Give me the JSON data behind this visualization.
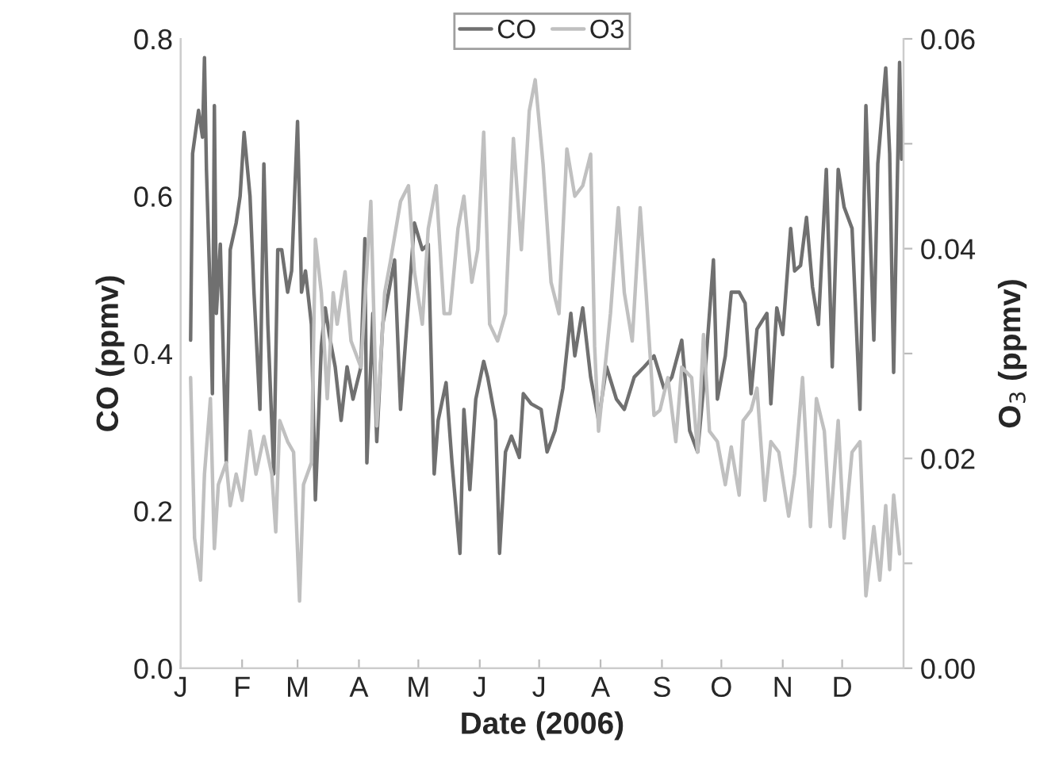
{
  "chart_data": {
    "type": "line",
    "xlabel": "Date (2006)",
    "ylabel": "CO (ppmv)",
    "y2label": "O$_{3}$ (ppmv)",
    "categories": [
      "J",
      null,
      null,
      null,
      null,
      null,
      null,
      null,
      null,
      null,
      null,
      null,
      null,
      null,
      null,
      null,
      null,
      null,
      null,
      null,
      null,
      null,
      null,
      null,
      null,
      null,
      null,
      null,
      null,
      null,
      null,
      "F",
      null,
      null,
      null,
      null,
      null,
      null,
      null,
      null,
      null,
      null,
      null,
      null,
      null,
      null,
      null,
      null,
      null,
      null,
      null,
      null,
      null,
      null,
      null,
      null,
      null,
      null,
      null,
      "M",
      null,
      null,
      null,
      null,
      null,
      null,
      null,
      null,
      null,
      null,
      null,
      null,
      null,
      null,
      null,
      null,
      null,
      null,
      null,
      null,
      null,
      null,
      null,
      null,
      null,
      null,
      null,
      null,
      null,
      null,
      "A",
      null,
      null,
      null,
      null,
      null,
      null,
      null,
      null,
      null,
      null,
      null,
      null,
      null,
      null,
      null,
      null,
      null,
      null,
      null,
      null,
      null,
      null,
      null,
      null,
      null,
      null,
      null,
      null,
      null,
      "M",
      null,
      null,
      null,
      null,
      null,
      null,
      null,
      null,
      null,
      null,
      null,
      null,
      null,
      null,
      null,
      null,
      null,
      null,
      null,
      null,
      null,
      null,
      null,
      null,
      null,
      null,
      null,
      null,
      null,
      null,
      "J",
      null,
      null,
      null,
      null,
      null,
      null,
      null,
      null,
      null,
      null,
      null,
      null,
      null,
      null,
      null,
      null,
      null,
      null,
      null,
      null,
      null,
      null,
      null,
      null,
      null,
      null,
      null,
      null,
      null,
      "J",
      null,
      null,
      null,
      null,
      null,
      null,
      null,
      null,
      null,
      null,
      null,
      null,
      null,
      null,
      null,
      null,
      null,
      null,
      null,
      null,
      null,
      null,
      null,
      null,
      null,
      null,
      null,
      null,
      null,
      null,
      "A",
      null,
      null,
      null,
      null,
      null,
      null,
      null,
      null,
      null,
      null,
      null,
      null,
      null,
      null,
      null,
      null,
      null,
      null,
      null,
      null,
      null,
      null,
      null,
      null,
      null,
      null,
      null,
      null,
      null,
      null,
      "S",
      null,
      null,
      null,
      null,
      null,
      null,
      null,
      null,
      null,
      null,
      null,
      null,
      null,
      null,
      null,
      null,
      null,
      null,
      null,
      null,
      null,
      null,
      null,
      null,
      null,
      null,
      null,
      null,
      null,
      "O",
      null,
      null,
      null,
      null,
      null,
      null,
      null,
      null,
      null,
      null,
      null,
      null,
      null,
      null,
      null,
      null,
      null,
      null,
      null,
      null,
      null,
      null,
      null,
      null,
      null,
      null,
      null,
      null,
      null,
      null,
      "N",
      null,
      null,
      null,
      null,
      null,
      null,
      null,
      null,
      null,
      null,
      null,
      null,
      null,
      null,
      null,
      null,
      null,
      null,
      null,
      null,
      null,
      null,
      null,
      null,
      null,
      null,
      null,
      null,
      null,
      "D",
      null,
      null,
      null,
      null,
      null,
      null,
      null,
      null,
      null,
      null,
      null,
      null,
      null,
      null,
      null,
      null,
      null,
      null,
      null,
      null,
      null,
      null,
      null,
      null,
      null,
      null,
      null,
      null,
      null,
      null
    ],
    "ylim": [
      0,
      0.8
    ],
    "yticks": [
      {
        "value": 0,
        "label": "0.0"
      },
      {
        "value": 0.2,
        "label": "0.2"
      },
      {
        "value": 0.4,
        "label": "0.4"
      },
      {
        "value": 0.6,
        "label": "0.6"
      },
      {
        "value": 0.8,
        "label": "0.8"
      }
    ],
    "y2lim": [
      0,
      0.06
    ],
    "y2ticks": [
      {
        "value": 0,
        "label": "0.00"
      },
      {
        "value": 0.01,
        "label": null
      },
      {
        "value": 0.02,
        "label": "0.02"
      },
      {
        "value": 0.03,
        "label": null
      },
      {
        "value": 0.04,
        "label": "0.04"
      },
      {
        "value": 0.05,
        "label": null
      },
      {
        "value": 0.06,
        "label": "0.06"
      }
    ],
    "grid": false,
    "legend": "top",
    "marker": "none",
    "line_style": "solid",
    "series": [
      {
        "name": "CO",
        "color": "#707070",
        "values": [
          null,
          null,
          null,
          null,
          null,
          0.417,
          0.654,
          null,
          null,
          0.709,
          null,
          0.675,
          0.776,
          0.634,
          null,
          0.464,
          0.349,
          0.715,
          0.451,
          null,
          0.539,
          null,
          null,
          0.261,
          null,
          0.532,
          null,
          null,
          0.566,
          null,
          0.6,
          null,
          0.681,
          null,
          null,
          0.6,
          null,
          0.478,
          null,
          null,
          0.329,
          null,
          0.641,
          null,
          0.437,
          null,
          null,
          0.247,
          null,
          0.532,
          null,
          0.532,
          null,
          null,
          0.478,
          null,
          0.505,
          null,
          null,
          0.695,
          null,
          0.478,
          null,
          0.505,
          null,
          null,
          0.437,
          null,
          0.214,
          null,
          null,
          0.41,
          null,
          0.458,
          null,
          0.424,
          null,
          null,
          0.383,
          null,
          null,
          0.315,
          null,
          null,
          0.383,
          null,
          null,
          0.342,
          null,
          null,
          null,
          0.383,
          null,
          0.546,
          0.261,
          null,
          null,
          0.451,
          null,
          0.288,
          null,
          null,
          0.437,
          null,
          null,
          0.478,
          null,
          null,
          0.519,
          null,
          null,
          0.329,
          null,
          null,
          null,
          0.464,
          null,
          null,
          0.566,
          null,
          null,
          null,
          0.532,
          null,
          null,
          0.539,
          null,
          null,
          0.247,
          null,
          0.315,
          null,
          null,
          null,
          0.363,
          null,
          null,
          0.261,
          null,
          null,
          null,
          0.146,
          null,
          0.329,
          null,
          null,
          0.227,
          null,
          null,
          0.342,
          null,
          null,
          null,
          0.39,
          null,
          0.37,
          null,
          null,
          null,
          0.315,
          null,
          0.146,
          null,
          null,
          0.275,
          null,
          null,
          0.295,
          null,
          null,
          null,
          0.268,
          null,
          0.349,
          null,
          null,
          null,
          0.336,
          null,
          null,
          null,
          null,
          0.329,
          null,
          null,
          0.275,
          null,
          null,
          null,
          0.302,
          null,
          null,
          null,
          0.356,
          null,
          null,
          null,
          0.451,
          null,
          0.397,
          null,
          null,
          null,
          0.458,
          null,
          null,
          null,
          0.37,
          null,
          null,
          null,
          0.315,
          null,
          null,
          null,
          0.383,
          null,
          null,
          null,
          null,
          0.342,
          null,
          null,
          null,
          0.329,
          null,
          null,
          null,
          null,
          0.37,
          null,
          null,
          null,
          null,
          0.383,
          null,
          null,
          null,
          null,
          0.397,
          null,
          null,
          null,
          null,
          0.356,
          null,
          null,
          null,
          0.37,
          null,
          null,
          null,
          null,
          0.417,
          null,
          null,
          null,
          0.302,
          null,
          null,
          null,
          0.275,
          null,
          null,
          null,
          0.383,
          null,
          null,
          null,
          0.519,
          null,
          0.342,
          null,
          null,
          null,
          0.397,
          null,
          null,
          0.478,
          null,
          null,
          null,
          0.478,
          null,
          null,
          0.464,
          null,
          null,
          0.349,
          null,
          null,
          0.431,
          null,
          null,
          null,
          null,
          0.451,
          null,
          0.336,
          null,
          null,
          0.458,
          null,
          null,
          0.424,
          null,
          null,
          null,
          0.559,
          null,
          0.505,
          null,
          null,
          0.512,
          null,
          null,
          0.573,
          null,
          null,
          0.485,
          null,
          null,
          0.437,
          null,
          null,
          null,
          0.634,
          null,
          null,
          0.383,
          null,
          null,
          0.634,
          null,
          null,
          0.586,
          null,
          null,
          null,
          0.559,
          null,
          null,
          null,
          0.329,
          null,
          null,
          0.715,
          null,
          null,
          null,
          0.417,
          null,
          0.641,
          null,
          null,
          null,
          0.763,
          null,
          0.654,
          null,
          0.376,
          null,
          null,
          0.77,
          0.647
        ]
      },
      {
        "name": "O3",
        "color": "#c0c0c0",
        "axis": "y2",
        "values": [
          null,
          null,
          null,
          null,
          null,
          0.0277,
          null,
          0.0124,
          null,
          null,
          0.0084,
          null,
          0.0185,
          null,
          null,
          0.0257,
          null,
          0.0114,
          null,
          0.0175,
          null,
          null,
          null,
          0.0196,
          null,
          0.0155,
          null,
          null,
          0.0185,
          null,
          null,
          0.016,
          null,
          null,
          null,
          0.0226,
          null,
          null,
          0.0185,
          null,
          null,
          null,
          0.0221,
          null,
          null,
          null,
          0.0185,
          null,
          0.013,
          null,
          0.0236,
          null,
          null,
          null,
          0.0216,
          null,
          null,
          0.0206,
          null,
          null,
          0.0064,
          null,
          0.0175,
          null,
          null,
          null,
          0.0196,
          null,
          0.0409,
          null,
          null,
          0.0358,
          null,
          null,
          0.0257,
          null,
          null,
          0.0358,
          null,
          0.0328,
          null,
          null,
          null,
          0.0378,
          null,
          null,
          0.0312,
          null,
          null,
          null,
          null,
          0.0287,
          null,
          null,
          null,
          null,
          0.0445,
          null,
          null,
          0.0231,
          null,
          null,
          null,
          0.0358,
          null,
          null,
          0.0389,
          null,
          null,
          null,
          null,
          0.0445,
          null,
          null,
          null,
          0.046,
          null,
          null,
          0.0378,
          null,
          null,
          null,
          0.0328,
          null,
          null,
          0.0419,
          null,
          null,
          null,
          0.046,
          null,
          null,
          null,
          0.0338,
          null,
          null,
          0.0338,
          null,
          null,
          null,
          0.0419,
          null,
          null,
          0.045,
          null,
          null,
          null,
          0.0368,
          null,
          null,
          0.0399,
          null,
          null,
          0.0511,
          null,
          null,
          0.0328,
          null,
          null,
          null,
          0.0312,
          null,
          null,
          null,
          0.0338,
          null,
          null,
          null,
          0.0505,
          null,
          null,
          null,
          0.0399,
          null,
          null,
          null,
          0.0531,
          null,
          null,
          0.0561,
          null,
          null,
          null,
          0.048,
          null,
          null,
          null,
          0.0368,
          null,
          null,
          null,
          0.0338,
          null,
          null,
          null,
          0.0495,
          null,
          null,
          null,
          0.045,
          null,
          null,
          null,
          0.046,
          null,
          null,
          null,
          0.049,
          null,
          0.0307,
          null,
          0.0226,
          null,
          null,
          null,
          null,
          null,
          0.0338,
          null,
          null,
          null,
          0.0439,
          null,
          null,
          0.0358,
          null,
          null,
          null,
          0.0312,
          null,
          null,
          null,
          0.0439,
          null,
          null,
          0.0358,
          null,
          null,
          null,
          0.0241,
          null,
          null,
          0.0246,
          null,
          null,
          null,
          0.0277,
          null,
          null,
          null,
          0.0216,
          null,
          null,
          0.0287,
          null,
          null,
          null,
          null,
          0.0277,
          null,
          null,
          0.0206,
          null,
          null,
          0.0318,
          null,
          null,
          0.0226,
          null,
          null,
          null,
          0.0216,
          null,
          null,
          null,
          0.0175,
          null,
          null,
          0.0211,
          null,
          null,
          null,
          0.0165,
          null,
          0.0236,
          null,
          null,
          null,
          0.0246,
          null,
          null,
          0.0267,
          null,
          null,
          null,
          0.016,
          null,
          null,
          0.0216,
          null,
          null,
          null,
          0.0206,
          null,
          null,
          null,
          null,
          0.0145,
          null,
          null,
          0.0185,
          null,
          null,
          null,
          0.0277,
          null,
          null,
          null,
          0.0135,
          null,
          null,
          0.0257,
          null,
          null,
          null,
          0.0226,
          null,
          null,
          0.0135,
          null,
          null,
          null,
          0.0236,
          null,
          null,
          0.0124,
          null,
          null,
          null,
          0.0206,
          null,
          null,
          null,
          0.0216,
          null,
          null,
          0.0069,
          null,
          null,
          null,
          0.0135,
          null,
          null,
          0.0084,
          null,
          null,
          0.0155,
          null,
          0.0094,
          null,
          0.0165,
          null,
          null,
          0.0109,
          null
        ]
      }
    ]
  }
}
